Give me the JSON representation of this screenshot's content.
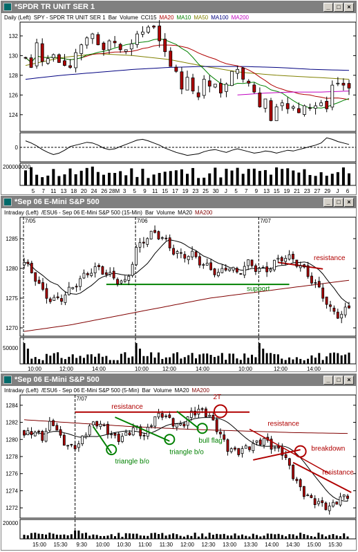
{
  "colors": {
    "ma20": "#b00000",
    "ma10": "#008000",
    "ma50": "#808000",
    "ma100": "#000080",
    "ma200": "#c000c0",
    "ma200_intraday": "#800000",
    "annot_red": "#b00000",
    "annot_green": "#008000"
  },
  "windows": [
    {
      "id": "daily",
      "title": "*SPDR TR UNIT SER 1",
      "header": [
        {
          "text": "Daily (Left)",
          "color": "#000000"
        },
        {
          "text": "SPY - SPDR TR UNIT SER 1",
          "color": "#000000"
        },
        {
          "text": "Bar",
          "color": "#000000"
        },
        {
          "text": "Volume",
          "color": "#000000"
        },
        {
          "text": "CCI15",
          "color": "#000000"
        },
        {
          "text": "MA20",
          "color": "#b00000"
        },
        {
          "text": "MA10",
          "color": "#008000"
        },
        {
          "text": "MA50",
          "color": "#808000"
        },
        {
          "text": "MA100",
          "color": "#000080"
        },
        {
          "text": "MA200",
          "color": "#c000c0"
        }
      ],
      "chart_data": {
        "type": "candlestick",
        "y_ticks": [
          124,
          126,
          128,
          130,
          132
        ],
        "ylim": [
          122.3,
          133.4
        ],
        "x_labels": [
          "5",
          "7",
          "11",
          "13",
          "18",
          "20",
          "24",
          "26",
          "28M",
          "3",
          "5",
          "9",
          "11",
          "15",
          "17",
          "19",
          "23",
          "25",
          "30",
          "J",
          "5",
          "7",
          "9",
          "13",
          "15",
          "19",
          "21",
          "23",
          "27",
          "29",
          "J",
          "6"
        ],
        "closes": [
          129.8,
          128.8,
          131.3,
          129.4,
          129.7,
          130.1,
          129.3,
          129.0,
          128.8,
          130.3,
          131.1,
          131.8,
          132.2,
          131.1,
          130.6,
          131.5,
          131.3,
          130.6,
          130.6,
          131.2,
          132.2,
          132.4,
          132.9,
          132.9,
          131.5,
          130.4,
          128.9,
          128.4,
          126.6,
          127.8,
          126.4,
          125.8,
          127.6,
          126.9,
          127.1,
          126.2,
          127.1,
          128.4,
          128.6,
          127.6,
          127.2,
          126.3,
          124.8,
          125.6,
          123.4,
          124.8,
          125.2,
          124.6,
          124.8,
          124.2,
          124.9,
          124.7,
          124.9,
          125.2,
          124.6,
          127.0,
          127.2,
          127.0,
          126.7
        ],
        "cci_ticks": [
          0
        ],
        "cci_values": [
          90,
          60,
          20,
          -30,
          -70,
          -100,
          -80,
          -40,
          10,
          30,
          50,
          70,
          60,
          30,
          -10,
          -30,
          -20,
          10,
          40,
          70,
          100,
          110,
          90,
          60,
          30,
          -10,
          -40,
          -70,
          -90,
          -110,
          -100,
          -90,
          -60,
          -40,
          -30,
          -50,
          -70,
          -40,
          -20,
          -40,
          -60,
          -80,
          -70,
          -50,
          -60,
          -80,
          -60,
          -40,
          -50,
          -30,
          -10,
          10,
          30,
          60,
          130,
          110,
          80,
          60,
          40
        ],
        "volume_label": "200000000"
      }
    },
    {
      "id": "intraday15",
      "title": "*Sep 06 E-Mini S&P 500",
      "header": [
        {
          "text": "Intraday (Left)",
          "color": "#000000"
        },
        {
          "text": "/ESU6 - Sep 06 E-Mini S&P 500 (15-Min)",
          "color": "#000000"
        },
        {
          "text": "Bar",
          "color": "#000000"
        },
        {
          "text": "Volume",
          "color": "#000000"
        },
        {
          "text": "MA20",
          "color": "#000000"
        },
        {
          "text": "MA200",
          "color": "#800000"
        }
      ],
      "chart_data": {
        "type": "candlestick",
        "y_ticks": [
          1270,
          1275,
          1280,
          1285
        ],
        "ylim": [
          1268.6,
          1288.6
        ],
        "date_markers": [
          "7/05",
          "7/06",
          "7/07"
        ],
        "x_labels": [
          "10:00",
          "12:00",
          "14:00",
          "10:00",
          "12:00",
          "14:00",
          "10:00",
          "12:00",
          "14:00"
        ],
        "annotations": [
          "resistance",
          "support"
        ],
        "volume_label": "50000"
      }
    },
    {
      "id": "intraday5",
      "title": "*Sep 06 E-Mini S&P 500",
      "header": [
        {
          "text": "Intraday (Left)",
          "color": "#000000"
        },
        {
          "text": "/ESU6 - Sep 06 E-Mini S&P 500 (5-Min)",
          "color": "#000000"
        },
        {
          "text": "Bar",
          "color": "#000000"
        },
        {
          "text": "Volume",
          "color": "#000000"
        },
        {
          "text": "MA20",
          "color": "#000000"
        },
        {
          "text": "MA200",
          "color": "#800000"
        }
      ],
      "chart_data": {
        "type": "candlestick",
        "y_ticks": [
          1272,
          1274,
          1276,
          1278,
          1280,
          1282,
          1284
        ],
        "ylim": [
          1270.8,
          1285.2
        ],
        "date_markers": [
          "7/07"
        ],
        "x_labels": [
          "15:00",
          "15:30",
          "9:30",
          "10:00",
          "10:30",
          "11:00",
          "11:30",
          "12:00",
          "12:30",
          "13:00",
          "13:30",
          "14:00",
          "14:30",
          "15:00",
          "15:30"
        ],
        "annotations": [
          "resistance",
          "2T",
          "bull flag",
          "triangle b/o",
          "triangle b/o",
          "resistance",
          "breakdown",
          "resistance"
        ],
        "volume_label": "20000"
      }
    }
  ]
}
